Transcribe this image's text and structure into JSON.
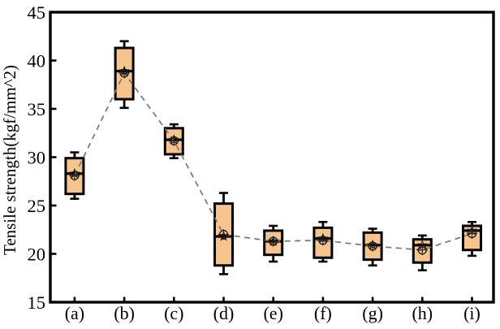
{
  "figure": {
    "title": "",
    "ylabel": "Tensile strength(kgf/mm^2)"
  },
  "chart_data": {
    "type": "box",
    "title": "",
    "xlabel": "",
    "ylabel": "Tensile strength(kgf/mm^2)",
    "ylim": [
      15,
      45
    ],
    "yticks": [
      15,
      20,
      25,
      30,
      35,
      40,
      45
    ],
    "grid": false,
    "legend": "none",
    "categories": [
      "(a)",
      "(b)",
      "(c)",
      "(d)",
      "(e)",
      "(f)",
      "(g)",
      "(h)",
      "(i)"
    ],
    "boxes": [
      {
        "category": "(a)",
        "whisker_low": 25.7,
        "q1": 26.2,
        "median": 28.3,
        "q3": 29.9,
        "whisker_high": 30.5,
        "mean": 28.1
      },
      {
        "category": "(b)",
        "whisker_low": 35.1,
        "q1": 36.0,
        "median": 38.9,
        "q3": 41.3,
        "whisker_high": 42.0,
        "mean": 38.7
      },
      {
        "category": "(c)",
        "whisker_low": 29.9,
        "q1": 30.3,
        "median": 31.8,
        "q3": 33.0,
        "whisker_high": 33.4,
        "mean": 31.7
      },
      {
        "category": "(d)",
        "whisker_low": 17.9,
        "q1": 18.8,
        "median": 21.8,
        "q3": 25.2,
        "whisker_high": 26.3,
        "mean": 22.0
      },
      {
        "category": "(e)",
        "whisker_low": 19.2,
        "q1": 19.9,
        "median": 21.3,
        "q3": 22.4,
        "whisker_high": 22.9,
        "mean": 21.3
      },
      {
        "category": "(f)",
        "whisker_low": 19.2,
        "q1": 19.6,
        "median": 21.6,
        "q3": 22.7,
        "whisker_high": 23.3,
        "mean": 21.4
      },
      {
        "category": "(g)",
        "whisker_low": 18.8,
        "q1": 19.4,
        "median": 20.9,
        "q3": 22.2,
        "whisker_high": 22.6,
        "mean": 20.8
      },
      {
        "category": "(h)",
        "whisker_low": 18.3,
        "q1": 19.1,
        "median": 20.9,
        "q3": 21.5,
        "whisker_high": 21.9,
        "mean": 20.4
      },
      {
        "category": "(i)",
        "whisker_low": 19.8,
        "q1": 20.4,
        "median": 22.4,
        "q3": 22.9,
        "whisker_high": 23.3,
        "mean": 22.1
      }
    ],
    "mean_connector": {
      "style": "dashed",
      "connects": "means"
    },
    "markers": {
      "mean": "circle-plus",
      "median": "star"
    },
    "colors": {
      "background": "#ffffff",
      "frame": "#000000",
      "box_fill": "#f7c48b",
      "box_border": "#000000",
      "median_line": "#000000",
      "whisker": "#000000",
      "dashed_line": "#767676",
      "marker": "#1c1c1c",
      "text": "#000000"
    }
  }
}
